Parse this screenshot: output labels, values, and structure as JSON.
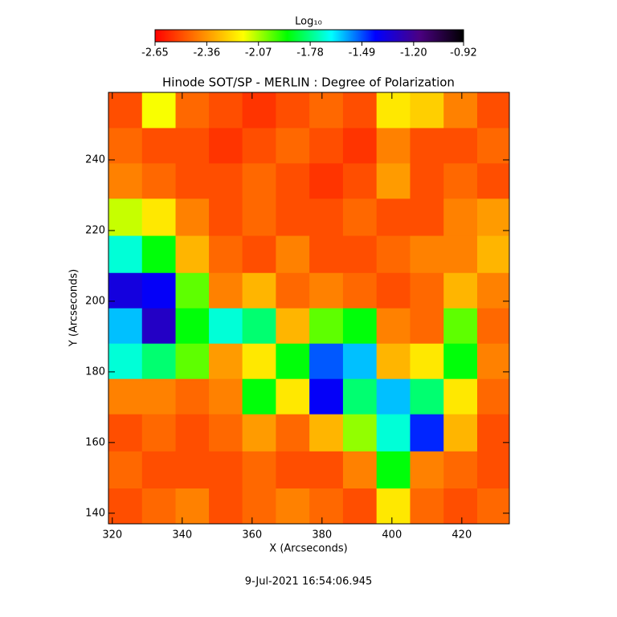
{
  "chart_data": {
    "type": "heatmap",
    "title": "Hinode SOT/SP - MERLIN : Degree of Polarization",
    "x_label": "X (Arcseconds)",
    "y_label": "Y (Arcseconds)",
    "colorbar_label": "Log₁₀",
    "footer": "9-Jul-2021 16:54:06.945",
    "xlim": [
      318.9,
      433.6
    ],
    "ylim": [
      137.0,
      259.1
    ],
    "xticks": [
      320,
      340,
      360,
      380,
      400,
      420
    ],
    "yticks": [
      140,
      160,
      180,
      200,
      220,
      240
    ],
    "zlim": [
      -2.65,
      -0.92
    ],
    "zticks": [
      -2.65,
      -2.36,
      -2.07,
      -1.78,
      -1.49,
      {
        "value": -1.2,
        "label": "-1.20"
      },
      -0.92
    ],
    "colormap": [
      "#ff0000",
      "#ff8000",
      "#ffff00",
      "#00ff00",
      "#00ffff",
      "#0000ff",
      "#4b0082",
      "#000000"
    ],
    "x": [
      323.7,
      333.3,
      342.9,
      352.4,
      362.0,
      371.6,
      381.2,
      390.8,
      400.4,
      410.0,
      419.6,
      429.2
    ],
    "y": [
      254,
      244,
      234,
      224,
      213,
      203,
      193,
      183,
      173,
      163,
      152,
      142
    ],
    "z": [
      [
        -2.5,
        -2.15,
        -2.45,
        -2.5,
        -2.55,
        -2.5,
        -2.45,
        -2.5,
        -2.2,
        -2.25,
        -2.4,
        -2.5
      ],
      [
        -2.45,
        -2.5,
        -2.5,
        -2.55,
        -2.5,
        -2.45,
        -2.5,
        -2.55,
        -2.4,
        -2.5,
        -2.5,
        -2.45
      ],
      [
        -2.4,
        -2.45,
        -2.5,
        -2.5,
        -2.45,
        -2.5,
        -2.55,
        -2.5,
        -2.35,
        -2.5,
        -2.45,
        -2.5
      ],
      [
        -2.1,
        -2.2,
        -2.4,
        -2.5,
        -2.45,
        -2.5,
        -2.5,
        -2.45,
        -2.5,
        -2.5,
        -2.4,
        -2.35
      ],
      [
        -1.7,
        -1.9,
        -2.3,
        -2.45,
        -2.5,
        -2.4,
        -2.5,
        -2.5,
        -2.45,
        -2.4,
        -2.4,
        -2.3
      ],
      [
        -1.35,
        -1.4,
        -2.0,
        -2.4,
        -2.3,
        -2.45,
        -2.4,
        -2.45,
        -2.5,
        -2.45,
        -2.3,
        -2.4
      ],
      [
        -1.6,
        -1.3,
        -1.9,
        -1.7,
        -1.8,
        -2.3,
        -2.0,
        -1.9,
        -2.4,
        -2.45,
        -2.0,
        -2.45
      ],
      [
        -1.7,
        -1.8,
        -2.0,
        -2.35,
        -2.2,
        -1.9,
        -1.5,
        -1.6,
        -2.3,
        -2.2,
        -1.9,
        -2.4
      ],
      [
        -2.4,
        -2.4,
        -2.45,
        -2.4,
        -1.9,
        -2.2,
        -1.4,
        -1.8,
        -1.6,
        -1.8,
        -2.2,
        -2.45
      ],
      [
        -2.5,
        -2.45,
        -2.5,
        -2.45,
        -2.35,
        -2.45,
        -2.3,
        -2.05,
        -1.7,
        -1.45,
        -2.3,
        -2.5
      ],
      [
        -2.45,
        -2.5,
        -2.5,
        -2.5,
        -2.45,
        -2.5,
        -2.5,
        -2.4,
        -1.9,
        -2.4,
        -2.45,
        -2.5
      ],
      [
        -2.5,
        -2.45,
        -2.4,
        -2.5,
        -2.45,
        -2.4,
        -2.45,
        -2.5,
        -2.2,
        -2.45,
        -2.5,
        -2.45
      ]
    ]
  }
}
